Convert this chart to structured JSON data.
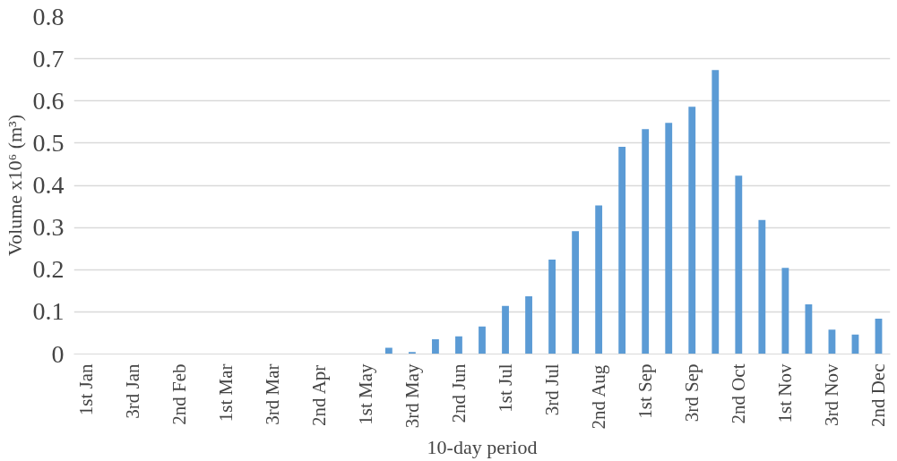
{
  "chart_data": {
    "type": "bar",
    "xlabel": "10-day period",
    "ylabel": "Volume x10⁶ (m³)",
    "categories": [
      "1st Jan",
      null,
      "3rd Jan",
      null,
      "2nd Feb",
      null,
      "1st Mar",
      null,
      "3rd Mar",
      null,
      "2nd Apr",
      null,
      "1st May",
      null,
      "3rd May",
      null,
      "2nd Jun",
      null,
      "1st Jul",
      null,
      "3rd Jul",
      null,
      "2nd Aug",
      null,
      "1st Sep",
      null,
      "3rd Sep",
      null,
      "2nd Oct",
      null,
      "1st Nov",
      null,
      "3rd Nov",
      null,
      "2nd Dec"
    ],
    "values": [
      0,
      0,
      0,
      0,
      0,
      0,
      0,
      0,
      0,
      0,
      0,
      0,
      0,
      0.015,
      0.005,
      0.035,
      0.042,
      0.065,
      0.114,
      0.137,
      0.224,
      0.291,
      0.352,
      0.491,
      0.533,
      0.548,
      0.586,
      0.673,
      0.423,
      0.318,
      0.204,
      0.118,
      0.058,
      0.046,
      0.084
    ],
    "color": "#5b9bd5",
    "ylim": [
      0,
      0.8
    ],
    "yticks": [
      0,
      0.1,
      0.2,
      0.3,
      0.4,
      0.5,
      0.6,
      0.7,
      0.8
    ],
    "grid": "y"
  }
}
